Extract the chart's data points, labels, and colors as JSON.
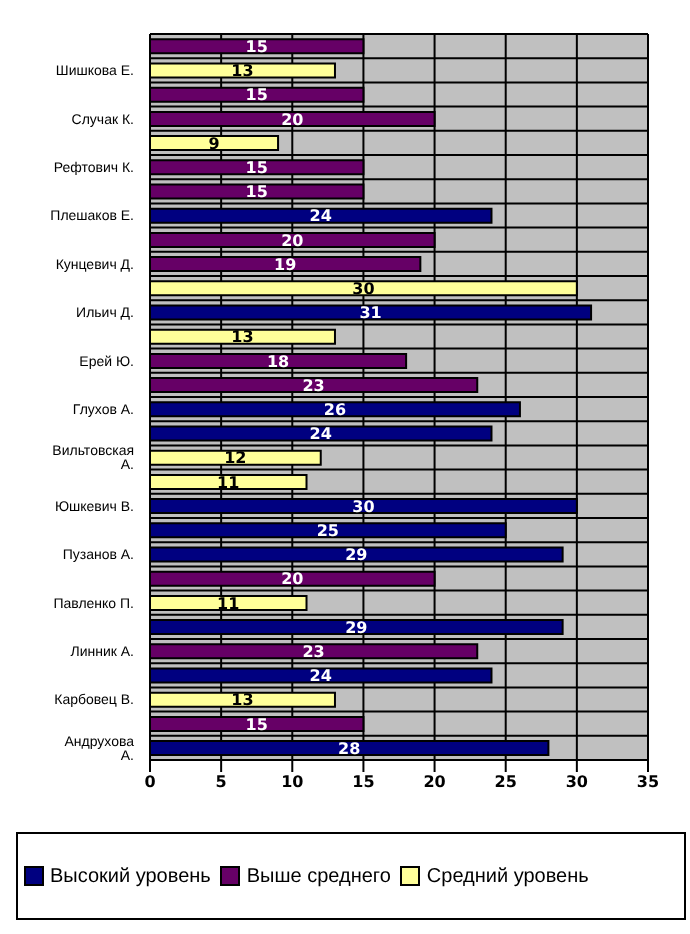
{
  "chart_data": {
    "type": "bar",
    "orientation": "horizontal",
    "stacked": true,
    "categories": [
      null,
      "Шишкова Е.",
      null,
      "Случак К.",
      null,
      "Рефтович К.",
      null,
      "Плешаков Е.",
      null,
      "Кунцевич Д.",
      null,
      "Ильич Д.",
      null,
      "Ерей Ю.",
      null,
      "Глухов А.",
      null,
      "Вильтовская А.",
      null,
      "Юшкевич В.",
      null,
      "Пузанов А.",
      null,
      "Павленко П.",
      null,
      "Линник А.",
      null,
      "Карбовец В.",
      null,
      "Андрухова А."
    ],
    "series": [
      {
        "name": "Высокий уровень",
        "color": "#000080",
        "values": [
          null,
          null,
          null,
          null,
          null,
          null,
          null,
          24,
          null,
          null,
          null,
          31,
          null,
          null,
          null,
          26,
          24,
          null,
          null,
          30,
          25,
          29,
          null,
          null,
          29,
          null,
          24,
          null,
          null,
          28
        ]
      },
      {
        "name": "Выше среднего",
        "color": "#660066",
        "values": [
          15,
          null,
          15,
          20,
          null,
          15,
          15,
          null,
          20,
          19,
          null,
          null,
          null,
          18,
          23,
          null,
          null,
          null,
          null,
          null,
          null,
          null,
          20,
          null,
          null,
          23,
          null,
          null,
          15,
          null
        ]
      },
      {
        "name": "Средний уровень",
        "color": "#ffff99",
        "values": [
          null,
          13,
          null,
          null,
          9,
          null,
          null,
          null,
          null,
          null,
          30,
          null,
          13,
          null,
          null,
          null,
          null,
          12,
          11,
          null,
          null,
          null,
          null,
          11,
          null,
          null,
          null,
          13,
          null,
          null
        ]
      }
    ],
    "xlim": [
      0,
      35
    ],
    "xticks": [
      0,
      5,
      10,
      15,
      20,
      25,
      30,
      35
    ],
    "grid": true,
    "data_labels": true,
    "legend": "bottom"
  }
}
